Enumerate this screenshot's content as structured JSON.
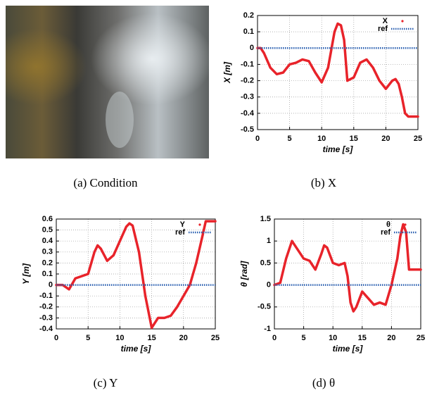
{
  "photo": {
    "caption": "(a) Condition"
  },
  "chart_data": [
    {
      "type": "line",
      "caption": "(b) X",
      "x_label": "time [s]",
      "y_label": "X [m]",
      "xlim": [
        0,
        25
      ],
      "xticks": [
        0,
        5,
        10,
        15,
        20,
        25
      ],
      "ylim": [
        -0.5,
        0.2
      ],
      "yticks": [
        -0.5,
        -0.4,
        -0.3,
        -0.2,
        -0.1,
        0,
        0.1,
        0.2
      ],
      "grid": true,
      "legend": "upper right",
      "series": [
        {
          "name": "X",
          "color": "#e8232a",
          "style": "dots",
          "x": [
            0,
            0.5,
            1,
            2,
            3,
            4,
            5,
            6,
            7,
            8,
            9,
            10,
            11,
            12,
            12.5,
            13,
            13.5,
            14,
            15,
            16,
            17,
            18,
            19,
            20,
            21,
            21.5,
            22,
            22.5,
            23,
            23.5,
            24,
            25
          ],
          "values": [
            0,
            0,
            -0.03,
            -0.12,
            -0.16,
            -0.15,
            -0.1,
            -0.09,
            -0.07,
            -0.08,
            -0.15,
            -0.21,
            -0.12,
            0.1,
            0.15,
            0.14,
            0.05,
            -0.2,
            -0.18,
            -0.09,
            -0.07,
            -0.12,
            -0.2,
            -0.25,
            -0.2,
            -0.19,
            -0.22,
            -0.3,
            -0.4,
            -0.42,
            -0.42,
            -0.42
          ]
        },
        {
          "name": "ref",
          "color": "#2a5fb0",
          "style": "dotted",
          "x": [
            0,
            25
          ],
          "values": [
            0,
            0
          ]
        }
      ]
    },
    {
      "type": "line",
      "caption": "(c) Y",
      "x_label": "time [s]",
      "y_label": "Y [m]",
      "xlim": [
        0,
        25
      ],
      "xticks": [
        0,
        5,
        10,
        15,
        20,
        25
      ],
      "ylim": [
        -0.4,
        0.6
      ],
      "yticks": [
        -0.4,
        -0.3,
        -0.2,
        -0.1,
        0,
        0.1,
        0.2,
        0.3,
        0.4,
        0.5,
        0.6
      ],
      "grid": true,
      "legend": "upper right",
      "series": [
        {
          "name": "Y",
          "color": "#e8232a",
          "style": "dots",
          "x": [
            0,
            1,
            2,
            3,
            4,
            5,
            6,
            6.5,
            7,
            8,
            9,
            10,
            11,
            11.5,
            12,
            13,
            14,
            15,
            16,
            17,
            18,
            19,
            20,
            21,
            22,
            23,
            23.5,
            25
          ],
          "values": [
            0,
            0,
            -0.04,
            0.06,
            0.08,
            0.1,
            0.3,
            0.36,
            0.33,
            0.22,
            0.27,
            0.4,
            0.53,
            0.56,
            0.54,
            0.3,
            -0.1,
            -0.39,
            -0.3,
            -0.3,
            -0.28,
            -0.2,
            -0.1,
            0,
            0.2,
            0.45,
            0.58,
            0.58
          ]
        },
        {
          "name": "ref",
          "color": "#2a5fb0",
          "style": "dotted",
          "x": [
            0,
            25
          ],
          "values": [
            0,
            0
          ]
        }
      ]
    },
    {
      "type": "line",
      "caption": "(d) θ",
      "x_label": "time [s]",
      "y_label": "θ [rad]",
      "xlim": [
        0,
        25
      ],
      "xticks": [
        0,
        5,
        10,
        15,
        20,
        25
      ],
      "ylim": [
        -1,
        1.5
      ],
      "yticks": [
        -1,
        -0.5,
        0,
        0.5,
        1,
        1.5
      ],
      "grid": true,
      "legend": "upper right",
      "series": [
        {
          "name": "θ",
          "color": "#e8232a",
          "style": "dots",
          "x": [
            0,
            1,
            2,
            3,
            4,
            5,
            6,
            7,
            8,
            8.5,
            9,
            10,
            11,
            12,
            12.5,
            13,
            13.5,
            14,
            15,
            16,
            17,
            18,
            19,
            20,
            21,
            21.5,
            22,
            22.5,
            23,
            25
          ],
          "values": [
            0,
            0.05,
            0.6,
            1.0,
            0.8,
            0.6,
            0.55,
            0.35,
            0.7,
            0.9,
            0.85,
            0.5,
            0.45,
            0.5,
            0.2,
            -0.4,
            -0.6,
            -0.5,
            -0.15,
            -0.3,
            -0.45,
            -0.4,
            -0.45,
            0,
            0.6,
            1.1,
            1.38,
            1.2,
            0.35,
            0.35
          ]
        },
        {
          "name": "ref",
          "color": "#2a5fb0",
          "style": "dotted",
          "x": [
            0,
            25
          ],
          "values": [
            0,
            0
          ]
        }
      ]
    }
  ]
}
